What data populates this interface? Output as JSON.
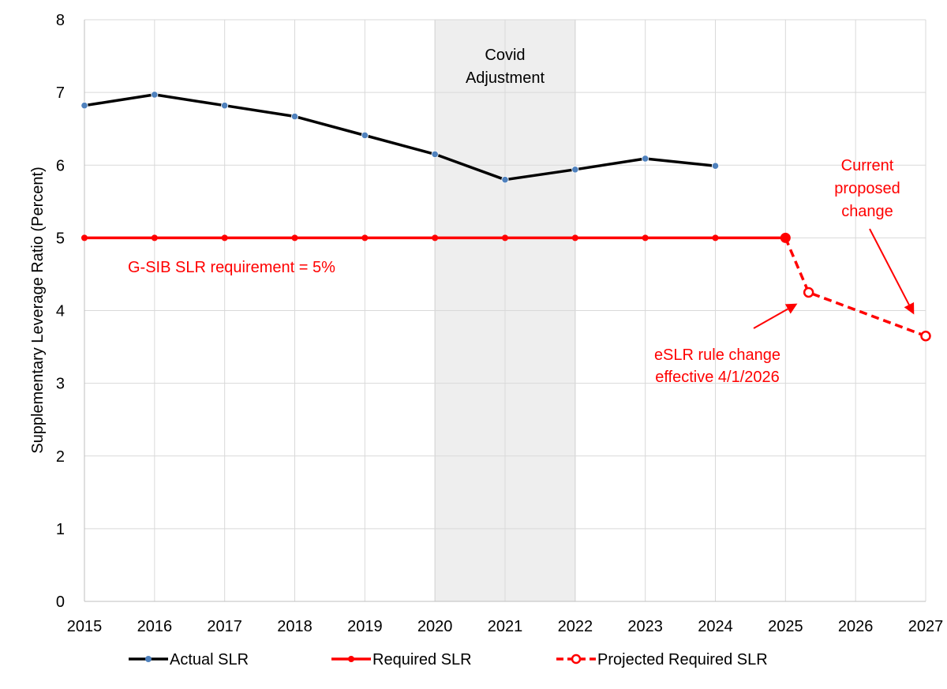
{
  "chart_data": {
    "type": "line",
    "ylabel": "Supplementary Leverage Ratio (Percent)",
    "xlim": [
      2015,
      2027
    ],
    "ylim": [
      0,
      8
    ],
    "x_ticks": [
      "2015",
      "2016",
      "2017",
      "2018",
      "2019",
      "2020",
      "2021",
      "2022",
      "2023",
      "2024",
      "2025",
      "2026",
      "2027"
    ],
    "y_ticks": [
      "0",
      "1",
      "2",
      "3",
      "4",
      "5",
      "6",
      "7",
      "8"
    ],
    "grid": true,
    "legend_position": "bottom",
    "shaded_region": {
      "x_start": 2020,
      "x_end": 2022,
      "label_lines": [
        "Covid",
        "Adjustment"
      ],
      "color": "#eeeeee"
    },
    "series": [
      {
        "name": "Actual SLR",
        "style": "solid",
        "line_color": "#000000",
        "marker_color": "#4f81bd",
        "x": [
          2015,
          2016,
          2017,
          2018,
          2019,
          2020,
          2021,
          2022,
          2023,
          2024
        ],
        "y": [
          6.82,
          6.97,
          6.82,
          6.67,
          6.41,
          6.15,
          5.8,
          5.94,
          6.09,
          5.99
        ]
      },
      {
        "name": "Required SLR",
        "style": "solid",
        "line_color": "#ff0000",
        "marker_color": "#ff0000",
        "x": [
          2015,
          2016,
          2017,
          2018,
          2019,
          2020,
          2021,
          2022,
          2023,
          2024,
          2025
        ],
        "y": [
          5,
          5,
          5,
          5,
          5,
          5,
          5,
          5,
          5,
          5,
          5
        ]
      },
      {
        "name": "Projected Required SLR",
        "style": "dashed",
        "line_color": "#ff0000",
        "marker_color": "#ff0000",
        "x": [
          2025,
          2025.33,
          2027
        ],
        "y": [
          5,
          4.25,
          3.65
        ]
      }
    ],
    "annotations": [
      {
        "name": "gsib-requirement",
        "lines": [
          "G-SIB SLR requirement = 5%"
        ],
        "color": "#ff0000"
      },
      {
        "name": "eslr-rule-change",
        "lines": [
          "eSLR rule change",
          "effective 4/1/2026"
        ],
        "color": "#ff0000"
      },
      {
        "name": "current-proposed-change",
        "lines": [
          "Current",
          "proposed",
          "change"
        ],
        "color": "#ff0000"
      }
    ]
  }
}
